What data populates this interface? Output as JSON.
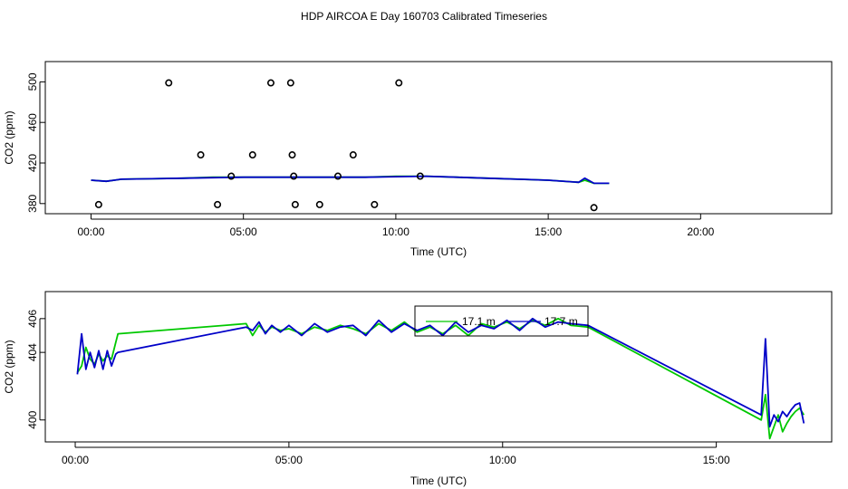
{
  "title": "HDP AIRCOA E  Day 160703  Calibrated Timeseries",
  "colors": {
    "green": "#00c800",
    "blue": "#0000c8",
    "axis": "#000000",
    "background": "#ffffff"
  },
  "chart_data": [
    {
      "type": "scatter",
      "xlabel": "Time (UTC)",
      "ylabel": "CO2 (ppm)",
      "xlim": [
        -1.5,
        24.3
      ],
      "ylim": [
        370,
        520
      ],
      "x_tick_labels": [
        "00:00",
        "05:00",
        "10:00",
        "15:00",
        "20:00"
      ],
      "x_ticks_hours": [
        0,
        5,
        10,
        15,
        20
      ],
      "y_ticks": [
        380,
        420,
        460,
        500
      ],
      "points": [
        {
          "x": 0.25,
          "y": 379
        },
        {
          "x": 2.55,
          "y": 499
        },
        {
          "x": 3.6,
          "y": 428
        },
        {
          "x": 4.15,
          "y": 379
        },
        {
          "x": 4.6,
          "y": 407
        },
        {
          "x": 5.3,
          "y": 428
        },
        {
          "x": 5.9,
          "y": 499
        },
        {
          "x": 6.55,
          "y": 499
        },
        {
          "x": 6.6,
          "y": 428
        },
        {
          "x": 6.65,
          "y": 407
        },
        {
          "x": 6.7,
          "y": 379
        },
        {
          "x": 7.5,
          "y": 379
        },
        {
          "x": 8.1,
          "y": 407
        },
        {
          "x": 8.6,
          "y": 428
        },
        {
          "x": 9.3,
          "y": 379
        },
        {
          "x": 10.1,
          "y": 499
        },
        {
          "x": 10.8,
          "y": 407
        },
        {
          "x": 16.5,
          "y": 376
        }
      ],
      "series": [
        {
          "name": "",
          "color": "green",
          "x": [
            0,
            0.5,
            1,
            2,
            3,
            4,
            5,
            6,
            7,
            8,
            9,
            10,
            11,
            12,
            13,
            14,
            15,
            16,
            16.2,
            16.5,
            17
          ],
          "values": [
            403,
            402,
            404,
            404.5,
            405,
            406,
            406,
            406,
            406,
            406,
            406,
            407,
            407,
            406,
            405,
            404,
            403,
            401,
            403,
            400,
            400
          ]
        },
        {
          "name": "",
          "color": "blue",
          "x": [
            0,
            0.5,
            1,
            2,
            3,
            4,
            5,
            6,
            7,
            8,
            9,
            10,
            11,
            12,
            13,
            14,
            15,
            16,
            16.2,
            16.5,
            17
          ],
          "values": [
            403,
            402,
            404,
            404.5,
            405,
            405.5,
            406,
            406,
            406,
            406,
            406,
            406.5,
            407,
            406,
            405,
            404,
            403,
            401,
            405,
            400,
            400
          ]
        }
      ]
    },
    {
      "type": "line",
      "xlabel": "Time (UTC)",
      "ylabel": "CO2 (ppm)",
      "xlim": [
        -0.7,
        17.7
      ],
      "ylim": [
        398.7,
        407.6
      ],
      "x_tick_labels": [
        "00:00",
        "05:00",
        "10:00",
        "15:00"
      ],
      "x_ticks_hours": [
        0,
        5,
        10,
        15
      ],
      "y_ticks": [
        400,
        404,
        406
      ],
      "legend": {
        "placement": "upper-center",
        "labels": [
          "17.1 m",
          "17.7 m"
        ]
      },
      "series": [
        {
          "name": "17.1 m",
          "color": "green",
          "x": [
            0.05,
            0.15,
            0.25,
            0.35,
            0.45,
            0.55,
            0.65,
            0.75,
            0.85,
            0.95,
            1.0,
            4.0,
            4.15,
            4.3,
            4.45,
            4.6,
            4.8,
            5.0,
            5.3,
            5.6,
            5.9,
            6.2,
            6.5,
            6.8,
            7.1,
            7.4,
            7.7,
            8.0,
            8.3,
            8.6,
            8.9,
            9.2,
            9.5,
            9.8,
            10.1,
            10.4,
            10.7,
            11.0,
            11.3,
            11.6,
            12.0,
            16.05,
            16.15,
            16.25,
            16.35,
            16.45,
            16.55,
            16.65,
            16.75,
            16.85,
            16.95,
            17.05
          ],
          "values": [
            402.8,
            403.2,
            404.3,
            403.6,
            403.3,
            403.9,
            403.5,
            403.8,
            403.6,
            404.6,
            405.1,
            405.7,
            405.0,
            405.6,
            405.2,
            405.5,
            405.3,
            405.4,
            405.1,
            405.5,
            405.3,
            405.6,
            405.4,
            405.1,
            405.7,
            405.3,
            405.8,
            405.2,
            405.5,
            405.1,
            405.6,
            405.0,
            405.7,
            405.5,
            405.8,
            405.4,
            405.9,
            405.6,
            406.0,
            405.6,
            405.5,
            400.0,
            401.5,
            398.9,
            399.6,
            400.3,
            399.3,
            399.8,
            400.2,
            400.5,
            400.7,
            400.3
          ]
        },
        {
          "name": "17.7 m",
          "color": "blue",
          "x": [
            0.05,
            0.15,
            0.25,
            0.35,
            0.45,
            0.55,
            0.65,
            0.75,
            0.85,
            0.95,
            1.0,
            4.0,
            4.15,
            4.3,
            4.45,
            4.6,
            4.8,
            5.0,
            5.3,
            5.6,
            5.9,
            6.2,
            6.5,
            6.8,
            7.1,
            7.4,
            7.7,
            8.0,
            8.3,
            8.6,
            8.9,
            9.2,
            9.5,
            9.8,
            10.1,
            10.4,
            10.7,
            11.0,
            11.3,
            11.6,
            12.0,
            16.05,
            16.15,
            16.25,
            16.35,
            16.45,
            16.55,
            16.65,
            16.75,
            16.85,
            16.95,
            17.05
          ],
          "values": [
            402.7,
            405.1,
            403.0,
            404.0,
            403.1,
            404.1,
            403.0,
            404.1,
            403.2,
            403.9,
            404.0,
            405.5,
            405.3,
            405.8,
            405.1,
            405.6,
            405.2,
            405.6,
            405.0,
            405.7,
            405.2,
            405.5,
            405.6,
            405.0,
            405.9,
            405.2,
            405.7,
            405.3,
            405.6,
            405.0,
            405.8,
            405.2,
            405.6,
            405.4,
            405.9,
            405.3,
            406.0,
            405.5,
            405.8,
            405.7,
            405.6,
            400.3,
            404.8,
            399.6,
            400.3,
            399.9,
            400.5,
            400.2,
            400.6,
            400.9,
            401.0,
            399.8
          ]
        }
      ]
    }
  ]
}
